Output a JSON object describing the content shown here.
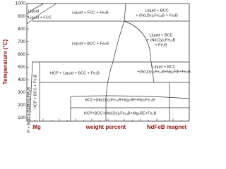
{
  "chart_data": {
    "type": "phase_diagram",
    "ylabel": "Temperature (°C)",
    "xlabel": "weight percent",
    "x_start_label": "Mg",
    "x_end_label": "NdFeB magnet",
    "ylim": [
      75,
      1000
    ],
    "yticks": [
      100,
      200,
      300,
      400,
      500,
      600,
      700,
      800,
      900,
      1000
    ],
    "regions": [
      [
        "Liquid"
      ],
      [
        "Liquid + FCC"
      ],
      [
        "Liquid + FCC + Fe₂B"
      ],
      [
        "Liquid + BCC",
        "+ (Nd,Dy)₂Fe₁₄B + Fe₂B"
      ],
      [
        "Liquid + BCC + Fe₂B"
      ],
      [
        "Liquid + BCC",
        "+ (Nd,Dy)₂Fe₁₄B",
        "+ Fe₂B"
      ],
      [
        "Liquid + BCC",
        "+(Nd,Dy)₂Fe₁₄B+Mg₂RE+Fe₂B"
      ],
      [
        "HCP + Liquid + BCC + Fe₂B"
      ],
      [
        "HCP + BCC + Fe₂B"
      ],
      [
        "HCP + BCC + (Nd,Dy)₂Fe₁₄B"
      ],
      [
        "BCC+(Nd,Dy)₂Fe₁₄B+Mg₂RE+Nd₂Fe₁₄B"
      ],
      [
        "HCP+BCC+(Nd,Dy)₂Fe₁₄B+Mg₂RE+Fe₂B"
      ]
    ]
  }
}
